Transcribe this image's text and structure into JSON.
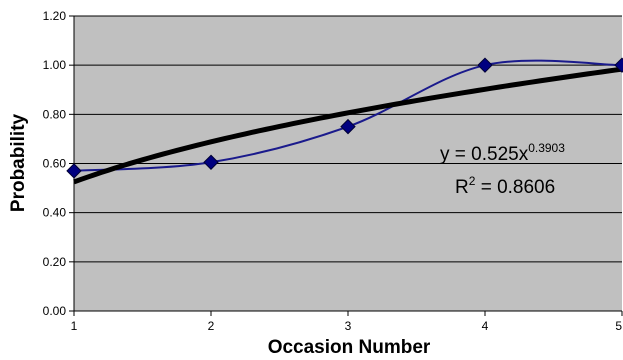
{
  "chart_data": {
    "type": "scatter",
    "xlabel": "Occasion Number",
    "ylabel": "Probability",
    "xlim": [
      1,
      5
    ],
    "ylim": [
      0,
      1.2
    ],
    "x_ticks": [
      "1",
      "2",
      "3",
      "4",
      "5"
    ],
    "y_ticks": [
      "0.00",
      "0.20",
      "0.40",
      "0.60",
      "0.80",
      "1.00",
      "1.20"
    ],
    "grid": "horizontal",
    "series": [
      {
        "style": "smoothed line with diamond markers",
        "color": "#1a1a8c",
        "marker_color": "#000080",
        "x": [
          1,
          2,
          3,
          4,
          5
        ],
        "y": [
          0.57,
          0.605,
          0.75,
          1.0,
          1.0
        ]
      }
    ],
    "trendline": {
      "type": "power",
      "coefficient": 0.525,
      "exponent": 0.3903,
      "color": "#000000"
    },
    "annotations": {
      "equation_base": "y = 0.525x",
      "equation_exponent": "0.3903",
      "r2_prefix": "R",
      "r2_sup": "2",
      "r2_value": " = 0.8606"
    },
    "plot_background": "#c0c0c0"
  }
}
